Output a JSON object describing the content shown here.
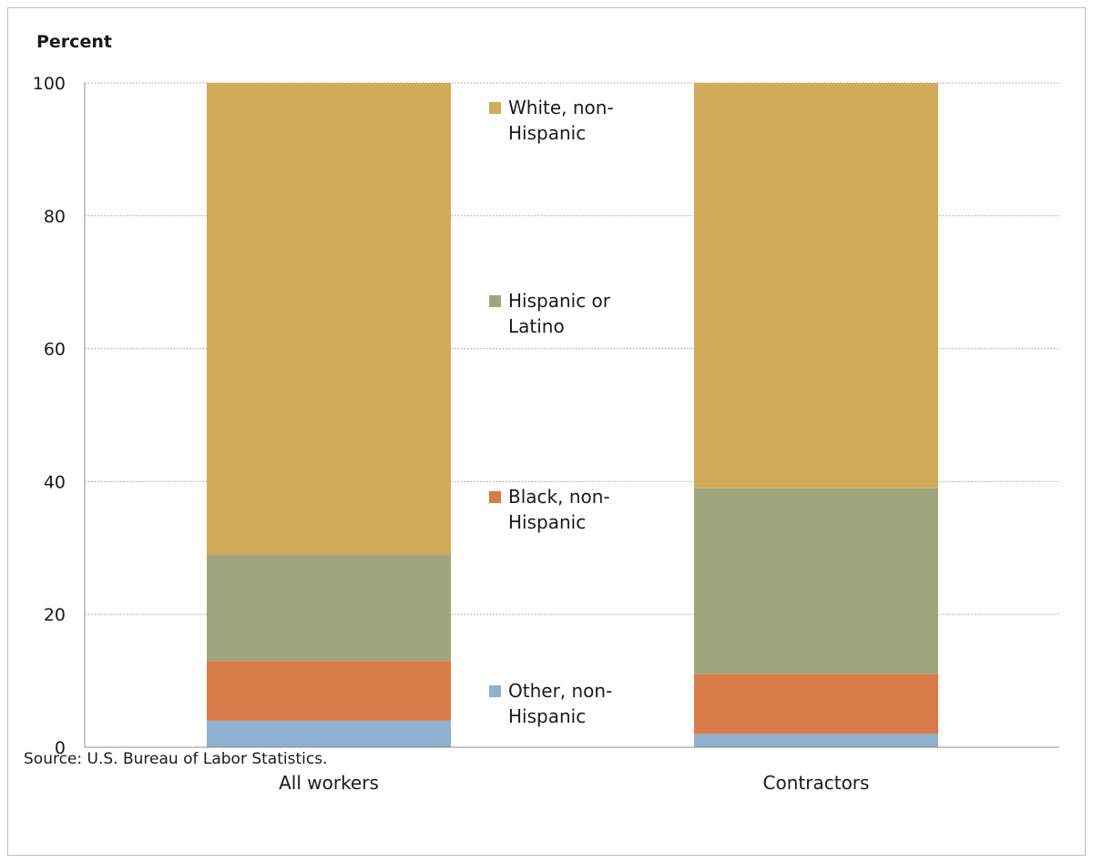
{
  "chart_data": {
    "type": "bar",
    "stacked": true,
    "ylabel": "Percent",
    "ylim": [
      0,
      100
    ],
    "yticks": [
      "0",
      "20",
      "40",
      "60",
      "80",
      "100"
    ],
    "grid": true,
    "legend_position": "center",
    "categories": [
      "All workers",
      "Contractors"
    ],
    "series": [
      {
        "name": "Other, non-Hispanic",
        "legend_lines": [
          "Other, non-",
          "Hispanic"
        ],
        "color": "#8fb0cf",
        "values": [
          4,
          2
        ]
      },
      {
        "name": "Black, non-Hispanic",
        "legend_lines": [
          "Black, non-",
          "Hispanic"
        ],
        "color": "#d97b48",
        "values": [
          9,
          9
        ]
      },
      {
        "name": "Hispanic or Latino",
        "legend_lines": [
          "Hispanic or",
          "Latino"
        ],
        "color": "#a0a57d",
        "values": [
          16,
          28
        ]
      },
      {
        "name": "White, non-Hispanic",
        "legend_lines": [
          "White, non-",
          "Hispanic"
        ],
        "color": "#d1ab5a",
        "values": [
          71,
          61
        ]
      }
    ]
  },
  "source": "Source: U.S. Bureau  of Labor Statistics."
}
